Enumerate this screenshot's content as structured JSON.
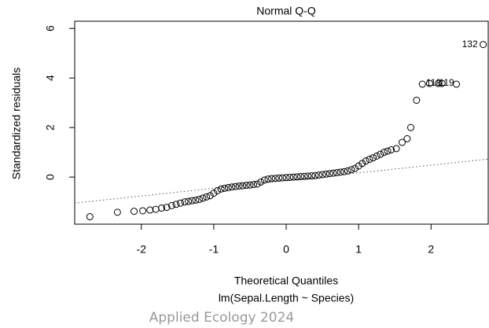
{
  "chart_data": {
    "type": "scatter",
    "title": "Normal Q-Q",
    "x_label": "Theoretical Quantiles",
    "subtitle": "lm(Sepal.Length ~ Species)",
    "y_label": "Standardized residuals",
    "watermark": "Applied Ecology 2024",
    "annotations": [
      "132",
      "118",
      "119"
    ],
    "x": [
      -2.71,
      -2.33,
      -2.1,
      -1.98,
      -1.88,
      -1.8,
      -1.72,
      -1.65,
      -1.58,
      -1.52,
      -1.46,
      -1.4,
      -1.35,
      -1.3,
      -1.25,
      -1.2,
      -1.15,
      -1.1,
      -1.05,
      -1.0,
      -0.95,
      -0.9,
      -0.85,
      -0.8,
      -0.75,
      -0.7,
      -0.65,
      -0.6,
      -0.55,
      -0.5,
      -0.45,
      -0.4,
      -0.35,
      -0.3,
      -0.25,
      -0.2,
      -0.15,
      -0.1,
      -0.05,
      0,
      0.05,
      0.1,
      0.15,
      0.2,
      0.25,
      0.3,
      0.35,
      0.4,
      0.45,
      0.5,
      0.55,
      0.6,
      0.65,
      0.7,
      0.75,
      0.8,
      0.85,
      0.9,
      0.95,
      1.0,
      1.05,
      1.1,
      1.15,
      1.2,
      1.25,
      1.3,
      1.35,
      1.4,
      1.45,
      1.52,
      1.6,
      1.67,
      1.72,
      1.8,
      1.88,
      1.98,
      2.1,
      2.15,
      2.35,
      2.72
    ],
    "values": [
      -1.6,
      -1.42,
      -1.38,
      -1.36,
      -1.33,
      -1.3,
      -1.25,
      -1.22,
      -1.15,
      -1.1,
      -1.05,
      -1.0,
      -0.98,
      -0.95,
      -0.93,
      -0.9,
      -0.85,
      -0.8,
      -0.75,
      -0.65,
      -0.55,
      -0.48,
      -0.45,
      -0.42,
      -0.4,
      -0.38,
      -0.36,
      -0.35,
      -0.33,
      -0.32,
      -0.3,
      -0.28,
      -0.2,
      -0.12,
      -0.08,
      -0.06,
      -0.05,
      -0.04,
      -0.03,
      -0.02,
      -0.01,
      0,
      0.01,
      0.02,
      0.03,
      0.04,
      0.05,
      0.06,
      0.08,
      0.1,
      0.12,
      0.14,
      0.16,
      0.18,
      0.2,
      0.22,
      0.25,
      0.3,
      0.35,
      0.45,
      0.55,
      0.65,
      0.72,
      0.78,
      0.85,
      0.92,
      1.0,
      1.05,
      1.1,
      1.15,
      1.4,
      1.55,
      2.0,
      3.1,
      3.75,
      3.78,
      3.78,
      3.78,
      3.75,
      5.35
    ],
    "reference_line": {
      "x": [
        -2.92,
        2.8
      ],
      "y": [
        -1.05,
        0.73
      ]
    },
    "xlim": [
      -2.92,
      2.8
    ],
    "ylim": [
      -1.9,
      6.29
    ],
    "xticks": [
      -2,
      -1,
      0,
      1,
      2
    ],
    "yticks": [
      0,
      2,
      4,
      6
    ],
    "grid": false
  }
}
